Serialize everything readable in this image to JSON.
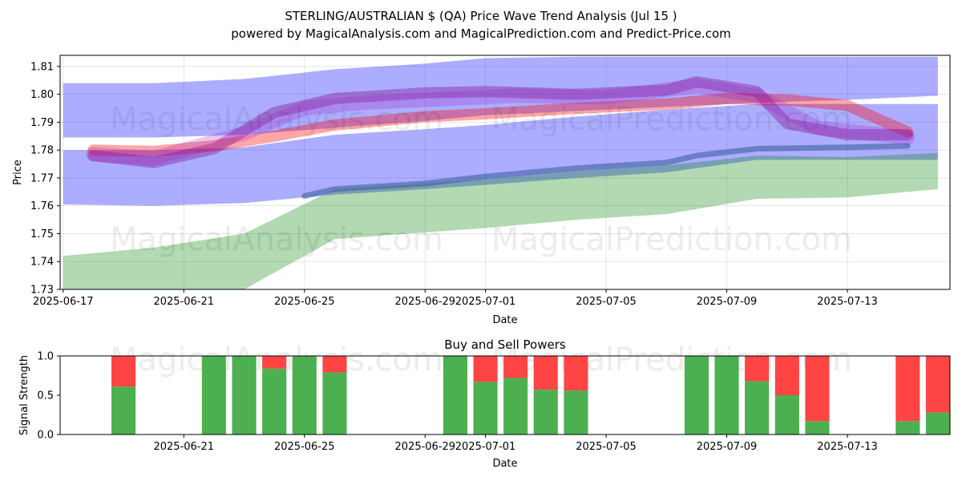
{
  "title_line1": "STERLING/AUSTRALIAN $ (QA) Price Wave Trend Analysis (Jul 15 )",
  "title_line2": "powered by MagicalAnalysis.com and MagicalPrediction.com and Predict-Price.com",
  "watermarks": [
    "MagicalAnalysis.com",
    "MagicalPrediction.com"
  ],
  "colors": {
    "green": "#4caf50",
    "red": "#ff4444",
    "blue": "#0000ff",
    "band_green": "#008000",
    "line_red": "#ff0000",
    "purple": "#800080",
    "steel": "#4060a0"
  },
  "chart_data": [
    {
      "type": "area",
      "title": "",
      "xlabel": "Date",
      "ylabel": "Price",
      "xlim": [
        "2025-06-17",
        "2025-07-16"
      ],
      "ylim": [
        1.73,
        1.814
      ],
      "x_ticks": [
        "2025-06-17",
        "2025-06-21",
        "2025-06-25",
        "2025-06-29",
        "2025-07-01",
        "2025-07-05",
        "2025-07-09",
        "2025-07-13"
      ],
      "y_ticks": [
        "1.73",
        "1.74",
        "1.75",
        "1.76",
        "1.77",
        "1.78",
        "1.79",
        "1.80",
        "1.81"
      ],
      "grid": true,
      "series": [
        {
          "kind": "band",
          "color": "#0000ff",
          "opacity": 0.32,
          "x": [
            "2025-06-17",
            "2025-06-20",
            "2025-06-23",
            "2025-06-26",
            "2025-06-29",
            "2025-07-01",
            "2025-07-04",
            "2025-07-07",
            "2025-07-10",
            "2025-07-13",
            "2025-07-16"
          ],
          "upper": [
            1.804,
            1.804,
            1.8055,
            1.809,
            1.811,
            1.813,
            1.8135,
            1.8135,
            1.8135,
            1.8135,
            1.8135
          ],
          "lower": [
            1.7845,
            1.7845,
            1.7855,
            1.788,
            1.7905,
            1.7925,
            1.794,
            1.7955,
            1.797,
            1.798,
            1.7995
          ]
        },
        {
          "kind": "band",
          "color": "#0000ff",
          "opacity": 0.32,
          "x": [
            "2025-06-17",
            "2025-06-20",
            "2025-06-23",
            "2025-06-26",
            "2025-06-29",
            "2025-07-01",
            "2025-07-04",
            "2025-07-07",
            "2025-07-10",
            "2025-07-13",
            "2025-07-16"
          ],
          "upper": [
            1.78,
            1.78,
            1.781,
            1.7855,
            1.7875,
            1.789,
            1.792,
            1.7945,
            1.7965,
            1.7965,
            1.7965
          ],
          "lower": [
            1.7605,
            1.76,
            1.761,
            1.764,
            1.766,
            1.7675,
            1.77,
            1.772,
            1.7765,
            1.7765,
            1.7765
          ]
        },
        {
          "kind": "band",
          "color": "#008000",
          "opacity": 0.3,
          "x": [
            "2025-06-17",
            "2025-06-20",
            "2025-06-23",
            "2025-06-26",
            "2025-06-29",
            "2025-07-01",
            "2025-07-04",
            "2025-07-07",
            "2025-07-10",
            "2025-07-13",
            "2025-07-16"
          ],
          "upper": [
            1.742,
            1.745,
            1.75,
            1.766,
            1.768,
            1.7695,
            1.7725,
            1.7745,
            1.778,
            1.7775,
            1.779
          ],
          "lower": [
            1.73,
            1.73,
            1.73,
            1.748,
            1.7505,
            1.752,
            1.755,
            1.757,
            1.7625,
            1.763,
            1.766
          ]
        },
        {
          "kind": "line",
          "color": "#4060a0",
          "opacity": 0.6,
          "width": 7,
          "x": [
            "2025-06-25",
            "2025-06-26",
            "2025-06-29",
            "2025-07-01",
            "2025-07-04",
            "2025-07-07",
            "2025-07-08",
            "2025-07-10",
            "2025-07-13",
            "2025-07-15"
          ],
          "y": [
            1.7635,
            1.766,
            1.768,
            1.7705,
            1.7735,
            1.7755,
            1.778,
            1.7805,
            1.781,
            1.7815
          ]
        },
        {
          "kind": "line",
          "color": "#ff0000",
          "opacity": 0.35,
          "width": 14,
          "x": [
            "2025-06-18",
            "2025-06-20",
            "2025-06-22",
            "2025-06-24",
            "2025-06-26",
            "2025-06-29",
            "2025-07-01",
            "2025-07-04",
            "2025-07-07",
            "2025-07-09",
            "2025-07-11",
            "2025-07-13",
            "2025-07-15"
          ],
          "y": [
            1.78,
            1.7795,
            1.7815,
            1.785,
            1.789,
            1.792,
            1.793,
            1.795,
            1.7965,
            1.7985,
            1.798,
            1.796,
            1.7865
          ]
        },
        {
          "kind": "line",
          "color": "#800080",
          "opacity": 0.35,
          "width": 14,
          "x": [
            "2025-06-18",
            "2025-06-20",
            "2025-06-22",
            "2025-06-24",
            "2025-06-26",
            "2025-06-29",
            "2025-07-01",
            "2025-07-04",
            "2025-07-07",
            "2025-07-08",
            "2025-07-10",
            "2025-07-11",
            "2025-07-13",
            "2025-07-15"
          ],
          "y": [
            1.778,
            1.7755,
            1.7805,
            1.7935,
            1.7985,
            1.8005,
            1.801,
            1.8,
            1.8015,
            1.8045,
            1.801,
            1.7895,
            1.7855,
            1.7855
          ]
        },
        {
          "kind": "line",
          "color": "#a020c0",
          "opacity": 0.25,
          "width": 18,
          "x": [
            "2025-06-18",
            "2025-06-20",
            "2025-06-23",
            "2025-06-25",
            "2025-06-27",
            "2025-06-30",
            "2025-07-02",
            "2025-07-05",
            "2025-07-08",
            "2025-07-10",
            "2025-07-12",
            "2025-07-15"
          ],
          "y": [
            1.7785,
            1.777,
            1.786,
            1.795,
            1.797,
            1.7985,
            1.7995,
            1.799,
            1.803,
            1.7995,
            1.788,
            1.7845
          ]
        }
      ]
    },
    {
      "type": "bar",
      "title": "Buy and Sell Powers",
      "xlabel": "Date",
      "ylabel": "Signal Strength",
      "ylim": [
        0,
        1.0
      ],
      "xlim": [
        "2025-06-17",
        "2025-07-16"
      ],
      "x_ticks": [
        "2025-06-21",
        "2025-06-25",
        "2025-06-29",
        "2025-07-01",
        "2025-07-05",
        "2025-07-09",
        "2025-07-13"
      ],
      "y_ticks": [
        "0.0",
        "0.5",
        "1.0"
      ],
      "categories": [
        "2025-06-19",
        "2025-06-22",
        "2025-06-23",
        "2025-06-24",
        "2025-06-25",
        "2025-06-26",
        "2025-06-30",
        "2025-07-01",
        "2025-07-02",
        "2025-07-03",
        "2025-07-04",
        "2025-07-08",
        "2025-07-09",
        "2025-07-10",
        "2025-07-11",
        "2025-07-12",
        "2025-07-15",
        "2025-07-16"
      ],
      "series": [
        {
          "name": "Buy",
          "color": "#4caf50",
          "values": [
            0.61,
            1.0,
            1.0,
            0.84,
            1.0,
            0.79,
            1.0,
            0.67,
            0.72,
            0.57,
            0.56,
            1.0,
            1.0,
            0.68,
            0.5,
            0.17,
            0.17,
            0.28
          ]
        },
        {
          "name": "Sell",
          "color": "#ff4444",
          "values": [
            0.39,
            0.0,
            0.0,
            0.16,
            0.0,
            0.21,
            0.0,
            0.33,
            0.28,
            0.43,
            0.44,
            0.0,
            0.0,
            0.32,
            0.5,
            0.83,
            0.83,
            0.72
          ]
        }
      ]
    }
  ]
}
